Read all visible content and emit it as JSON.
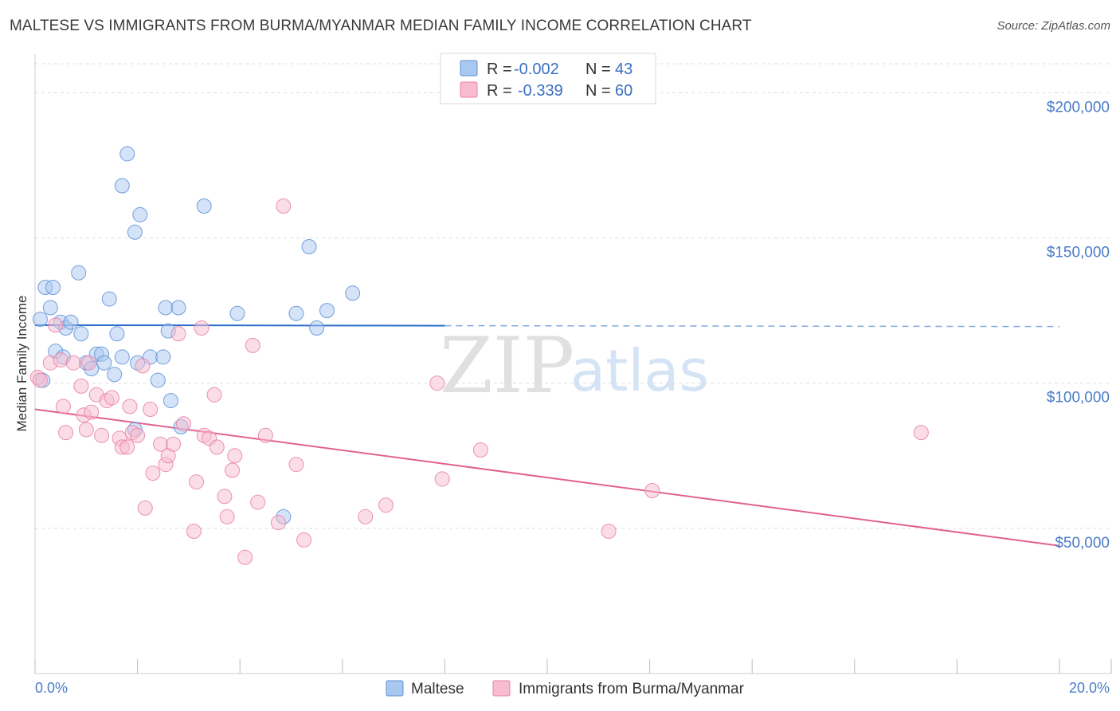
{
  "header": {
    "title": "MALTESE VS IMMIGRANTS FROM BURMA/MYANMAR MEDIAN FAMILY INCOME CORRELATION CHART",
    "source": "Source: ZipAtlas.com"
  },
  "legend": {
    "rows": [
      {
        "r_label": "R =",
        "r_value": "-0.002",
        "n_label": "N =",
        "n_value": "43"
      },
      {
        "r_label": "R =",
        "r_value": "-0.339",
        "n_label": "N =",
        "n_value": "60"
      }
    ]
  },
  "watermark": {
    "zip": "ZIP",
    "atlas": "atlas"
  },
  "colors": {
    "maltese_fill": "#a9c8ef",
    "maltese_stroke": "#5b8fd6",
    "maltese_line": "#2f6fc9",
    "burma_fill": "#f7bcd0",
    "burma_stroke": "#e87fa3",
    "burma_line": "#e2628f",
    "tick_label": "#4a7cc9",
    "grid": "#dddddd"
  },
  "chart_data": {
    "type": "scatter",
    "title": "MALTESE VS IMMIGRANTS FROM BURMA/MYANMAR MEDIAN FAMILY INCOME CORRELATION CHART",
    "xlabel": "",
    "ylabel": "Median Family Income",
    "xlim": [
      0,
      20
    ],
    "ylim": [
      0,
      210000
    ],
    "x_tick_labels": [
      "0.0%",
      "20.0%"
    ],
    "y_ticks": [
      50000,
      100000,
      150000,
      200000
    ],
    "y_tick_labels": [
      "$50,000",
      "$100,000",
      "$150,000",
      "$200,000"
    ],
    "grid": true,
    "legend_position": "top-center",
    "series": [
      {
        "name": "Maltese",
        "trend": {
          "x": [
            0.0,
            8.0
          ],
          "y": [
            120000,
            119800
          ],
          "dashed_extension_to_x": 20.0
        },
        "points": [
          {
            "x": 0.1,
            "y": 122000
          },
          {
            "x": 0.2,
            "y": 133000
          },
          {
            "x": 0.3,
            "y": 126000
          },
          {
            "x": 0.35,
            "y": 133000
          },
          {
            "x": 0.4,
            "y": 111000
          },
          {
            "x": 0.5,
            "y": 121000
          },
          {
            "x": 0.55,
            "y": 109000
          },
          {
            "x": 0.6,
            "y": 119000
          },
          {
            "x": 0.7,
            "y": 121000
          },
          {
            "x": 0.85,
            "y": 138000
          },
          {
            "x": 0.9,
            "y": 117000
          },
          {
            "x": 1.0,
            "y": 107000
          },
          {
            "x": 1.1,
            "y": 105000
          },
          {
            "x": 1.2,
            "y": 110000
          },
          {
            "x": 1.3,
            "y": 110000
          },
          {
            "x": 1.35,
            "y": 107000
          },
          {
            "x": 1.45,
            "y": 129000
          },
          {
            "x": 1.55,
            "y": 103000
          },
          {
            "x": 1.6,
            "y": 117000
          },
          {
            "x": 1.7,
            "y": 109000
          },
          {
            "x": 1.7,
            "y": 168000
          },
          {
            "x": 1.8,
            "y": 179000
          },
          {
            "x": 1.95,
            "y": 152000
          },
          {
            "x": 2.0,
            "y": 107000
          },
          {
            "x": 2.05,
            "y": 158000
          },
          {
            "x": 2.25,
            "y": 109000
          },
          {
            "x": 2.4,
            "y": 101000
          },
          {
            "x": 2.5,
            "y": 109000
          },
          {
            "x": 2.55,
            "y": 126000
          },
          {
            "x": 2.6,
            "y": 118000
          },
          {
            "x": 2.65,
            "y": 94000
          },
          {
            "x": 2.8,
            "y": 126000
          },
          {
            "x": 2.85,
            "y": 85000
          },
          {
            "x": 3.3,
            "y": 161000
          },
          {
            "x": 3.95,
            "y": 124000
          },
          {
            "x": 4.85,
            "y": 54000
          },
          {
            "x": 5.1,
            "y": 124000
          },
          {
            "x": 5.35,
            "y": 147000
          },
          {
            "x": 5.5,
            "y": 119000
          },
          {
            "x": 5.7,
            "y": 125000
          },
          {
            "x": 6.2,
            "y": 131000
          },
          {
            "x": 1.95,
            "y": 84000
          },
          {
            "x": 0.15,
            "y": 101000
          }
        ]
      },
      {
        "name": "Immigrants from Burma/Myanmar",
        "trend": {
          "x": [
            0.0,
            20.0
          ],
          "y": [
            91000,
            44000
          ]
        },
        "points": [
          {
            "x": 0.05,
            "y": 102000
          },
          {
            "x": 0.3,
            "y": 107000
          },
          {
            "x": 0.4,
            "y": 120000
          },
          {
            "x": 0.5,
            "y": 108000
          },
          {
            "x": 0.55,
            "y": 92000
          },
          {
            "x": 0.6,
            "y": 83000
          },
          {
            "x": 0.75,
            "y": 107000
          },
          {
            "x": 0.9,
            "y": 99000
          },
          {
            "x": 0.95,
            "y": 89000
          },
          {
            "x": 1.0,
            "y": 84000
          },
          {
            "x": 1.05,
            "y": 107000
          },
          {
            "x": 1.1,
            "y": 90000
          },
          {
            "x": 1.2,
            "y": 96000
          },
          {
            "x": 1.3,
            "y": 82000
          },
          {
            "x": 1.4,
            "y": 94000
          },
          {
            "x": 1.5,
            "y": 95000
          },
          {
            "x": 1.65,
            "y": 81000
          },
          {
            "x": 1.7,
            "y": 78000
          },
          {
            "x": 1.8,
            "y": 78000
          },
          {
            "x": 1.85,
            "y": 92000
          },
          {
            "x": 1.9,
            "y": 83000
          },
          {
            "x": 2.0,
            "y": 82000
          },
          {
            "x": 2.1,
            "y": 106000
          },
          {
            "x": 2.15,
            "y": 57000
          },
          {
            "x": 2.25,
            "y": 91000
          },
          {
            "x": 2.3,
            "y": 69000
          },
          {
            "x": 2.45,
            "y": 79000
          },
          {
            "x": 2.55,
            "y": 72000
          },
          {
            "x": 2.6,
            "y": 75000
          },
          {
            "x": 2.7,
            "y": 79000
          },
          {
            "x": 2.8,
            "y": 117000
          },
          {
            "x": 2.9,
            "y": 86000
          },
          {
            "x": 3.1,
            "y": 49000
          },
          {
            "x": 3.15,
            "y": 66000
          },
          {
            "x": 3.25,
            "y": 119000
          },
          {
            "x": 3.3,
            "y": 82000
          },
          {
            "x": 3.4,
            "y": 81000
          },
          {
            "x": 3.5,
            "y": 96000
          },
          {
            "x": 3.55,
            "y": 78000
          },
          {
            "x": 3.7,
            "y": 61000
          },
          {
            "x": 3.75,
            "y": 54000
          },
          {
            "x": 3.85,
            "y": 70000
          },
          {
            "x": 3.9,
            "y": 75000
          },
          {
            "x": 4.1,
            "y": 40000
          },
          {
            "x": 4.25,
            "y": 113000
          },
          {
            "x": 4.35,
            "y": 59000
          },
          {
            "x": 4.5,
            "y": 82000
          },
          {
            "x": 4.75,
            "y": 52000
          },
          {
            "x": 4.85,
            "y": 161000
          },
          {
            "x": 5.1,
            "y": 72000
          },
          {
            "x": 5.25,
            "y": 46000
          },
          {
            "x": 6.45,
            "y": 54000
          },
          {
            "x": 6.85,
            "y": 58000
          },
          {
            "x": 7.85,
            "y": 100000
          },
          {
            "x": 7.95,
            "y": 67000
          },
          {
            "x": 8.7,
            "y": 77000
          },
          {
            "x": 11.2,
            "y": 49000
          },
          {
            "x": 12.05,
            "y": 63000
          },
          {
            "x": 17.3,
            "y": 83000
          },
          {
            "x": 0.1,
            "y": 101000
          }
        ]
      }
    ]
  }
}
